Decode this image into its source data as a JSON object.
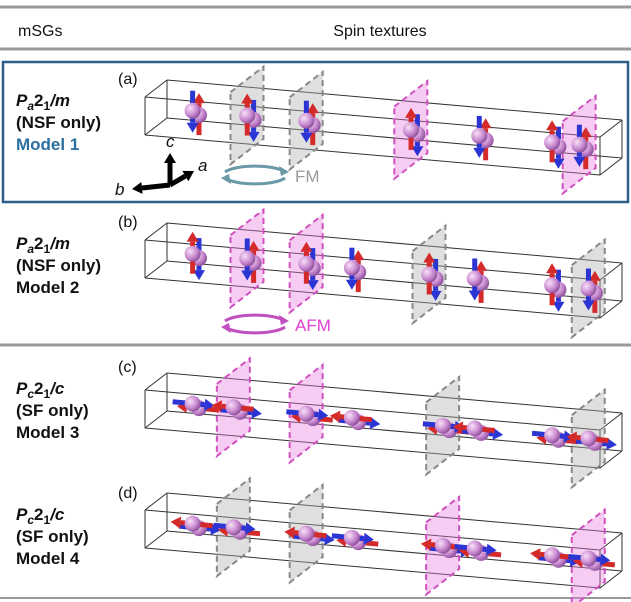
{
  "header": {
    "col1": "mSGs",
    "col2": "Spin textures"
  },
  "rows": [
    {
      "panel": "(a)",
      "group": [
        "P",
        "a",
        "2",
        "1",
        "/m"
      ],
      "lines": [
        "(NSF only)",
        "Model 1"
      ],
      "annotation": "FM",
      "axes": [
        "c",
        "b",
        "a"
      ]
    },
    {
      "panel": "(b)",
      "group": [
        "P",
        "a",
        "2",
        "1",
        "/m"
      ],
      "lines": [
        "(NSF only)",
        "Model 2"
      ],
      "annotation": "AFM"
    },
    {
      "panel": "(c)",
      "group": [
        "P",
        "c",
        "2",
        "1",
        "/c"
      ],
      "lines": [
        "(SF only)",
        "Model 3"
      ]
    },
    {
      "panel": "(d)",
      "group": [
        "P",
        "c",
        "2",
        "1",
        "/c"
      ],
      "lines": [
        "(SF only)",
        "Model 4"
      ]
    }
  ]
}
